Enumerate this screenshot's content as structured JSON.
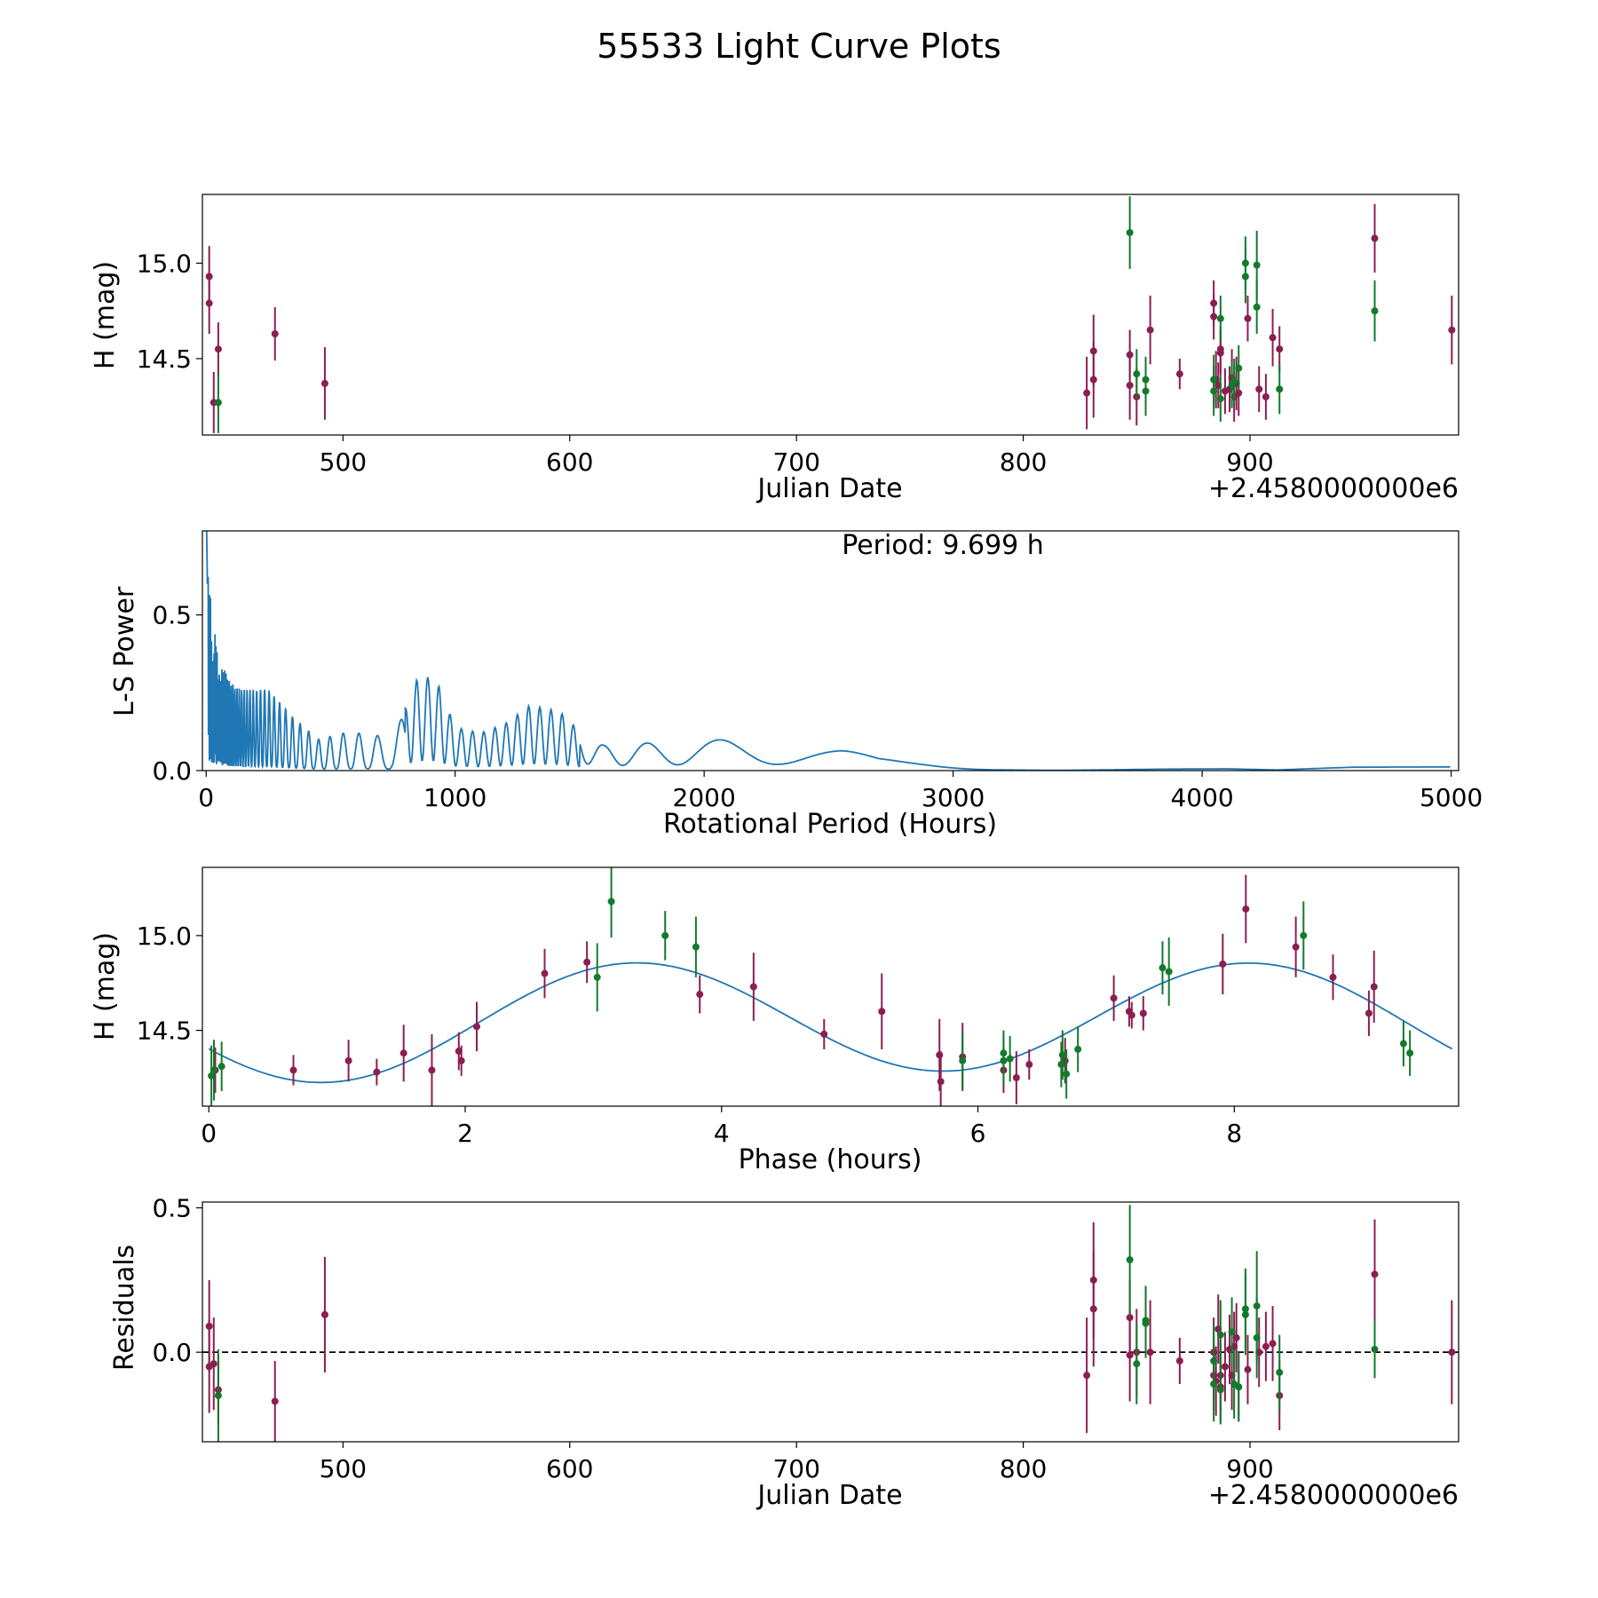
{
  "figure_title": "55533 Light Curve Plots",
  "colors": {
    "maroon": "#8b1e52",
    "green": "#137a2c",
    "curve": "#1f77b4",
    "zero_line": "#000000"
  },
  "chart_data": [
    {
      "type": "scatter",
      "id": "lightcurve",
      "xlabel": "Julian Date",
      "ylabel": "H (mag)",
      "offset_text": "+2.4580000000e6",
      "xlim": [
        438,
        992
      ],
      "ylim": [
        14.1,
        15.36
      ],
      "xticks": [
        500,
        600,
        700,
        800,
        900
      ],
      "yticks": [
        14.5,
        15.0
      ],
      "xtick_labels": [
        "500",
        "600",
        "700",
        "800",
        "900"
      ],
      "ytick_labels": [
        "14.5",
        "15.0"
      ],
      "series": [
        {
          "name": "maroon",
          "color": "#8b1e52",
          "points": [
            [
              441,
              14.93,
              0.16
            ],
            [
              441,
              14.79,
              0.16
            ],
            [
              443,
              14.27,
              0.16
            ],
            [
              445,
              14.55,
              0.14
            ],
            [
              470,
              14.63,
              0.14
            ],
            [
              492,
              14.37,
              0.19
            ],
            [
              828,
              14.32,
              0.19
            ],
            [
              831,
              14.39,
              0.2
            ],
            [
              831,
              14.54,
              0.19
            ],
            [
              847,
              14.52,
              0.13
            ],
            [
              847,
              14.36,
              0.18
            ],
            [
              850,
              14.3,
              0.15
            ],
            [
              856,
              14.65,
              0.18
            ],
            [
              869,
              14.42,
              0.08
            ],
            [
              884,
              14.79,
              0.12
            ],
            [
              884,
              14.72,
              0.12
            ],
            [
              885,
              14.39,
              0.15
            ],
            [
              886,
              14.36,
              0.12
            ],
            [
              887,
              14.53,
              0.12
            ],
            [
              887,
              14.55,
              0.12
            ],
            [
              889,
              14.33,
              0.12
            ],
            [
              891,
              14.34,
              0.12
            ],
            [
              892,
              14.4,
              0.15
            ],
            [
              893,
              14.3,
              0.13
            ],
            [
              894,
              14.37,
              0.14
            ],
            [
              895,
              14.32,
              0.12
            ],
            [
              899,
              14.71,
              0.12
            ],
            [
              904,
              14.34,
              0.12
            ],
            [
              907,
              14.3,
              0.12
            ],
            [
              910,
              14.61,
              0.15
            ],
            [
              913,
              14.55,
              0.12
            ],
            [
              955,
              15.13,
              0.18
            ],
            [
              989,
              14.65,
              0.18
            ]
          ]
        },
        {
          "name": "green",
          "color": "#137a2c",
          "points": [
            [
              445,
              14.27,
              0.16
            ],
            [
              847,
              15.16,
              0.19
            ],
            [
              850,
              14.42,
              0.13
            ],
            [
              854,
              14.33,
              0.13
            ],
            [
              854,
              14.39,
              0.12
            ],
            [
              884,
              14.39,
              0.13
            ],
            [
              884,
              14.33,
              0.13
            ],
            [
              887,
              14.71,
              0.12
            ],
            [
              887,
              14.29,
              0.12
            ],
            [
              892,
              14.36,
              0.12
            ],
            [
              893,
              14.38,
              0.12
            ],
            [
              895,
              14.45,
              0.12
            ],
            [
              898,
              15.0,
              0.14
            ],
            [
              898,
              14.93,
              0.14
            ],
            [
              903,
              14.99,
              0.18
            ],
            [
              903,
              14.77,
              0.14
            ],
            [
              913,
              14.34,
              0.13
            ],
            [
              955,
              14.75,
              0.16
            ]
          ]
        }
      ]
    },
    {
      "type": "line",
      "id": "periodogram",
      "xlabel": "Rotational Period (Hours)",
      "ylabel": "L-S Power",
      "annotation": "Period: 9.699 h",
      "xlim": [
        -15,
        5030
      ],
      "ylim": [
        0,
        0.77
      ],
      "xticks": [
        0,
        1000,
        2000,
        3000,
        4000,
        5000
      ],
      "yticks": [
        0,
        0.5
      ],
      "xtick_labels": [
        "0",
        "1000",
        "2000",
        "3000",
        "4000",
        "5000"
      ],
      "ytick_labels": [
        "0.0",
        "0.5"
      ],
      "envelope": [
        [
          0,
          0.77
        ],
        [
          20,
          0.55
        ],
        [
          50,
          0.36
        ],
        [
          100,
          0.28
        ],
        [
          150,
          0.26
        ],
        [
          250,
          0.26
        ],
        [
          350,
          0.17
        ],
        [
          450,
          0.1
        ],
        [
          550,
          0.12
        ],
        [
          650,
          0.12
        ],
        [
          750,
          0.1
        ],
        [
          850,
          0.3
        ],
        [
          920,
          0.3
        ],
        [
          1000,
          0.14
        ],
        [
          1100,
          0.12
        ],
        [
          1200,
          0.15
        ],
        [
          1300,
          0.21
        ],
        [
          1420,
          0.19
        ],
        [
          1520,
          0.11
        ],
        [
          1600,
          0.08
        ],
        [
          1800,
          0.09
        ],
        [
          2100,
          0.1
        ],
        [
          2300,
          0.1
        ],
        [
          2550,
          0.07
        ],
        [
          2700,
          0.04
        ],
        [
          2900,
          0.03
        ],
        [
          3100,
          0.015
        ],
        [
          3400,
          0.003
        ],
        [
          3800,
          0.006
        ],
        [
          4100,
          0.006
        ],
        [
          4300,
          0.002
        ],
        [
          4600,
          0.011
        ],
        [
          5000,
          0.014
        ]
      ]
    },
    {
      "type": "scatter",
      "id": "phased",
      "xlabel": "Phase (hours)",
      "ylabel": "H (mag)",
      "xlim": [
        -0.05,
        9.75
      ],
      "ylim": [
        14.1,
        15.36
      ],
      "xticks": [
        0,
        2,
        4,
        6,
        8
      ],
      "yticks": [
        14.5,
        15.0
      ],
      "xtick_labels": [
        "0",
        "2",
        "4",
        "6",
        "8"
      ],
      "ytick_labels": [
        "14.5",
        "15.0"
      ],
      "model": {
        "mean": 14.555,
        "amp2": 0.3,
        "phase2": 3.3,
        "amp1": 0.03,
        "period": 9.699
      },
      "series": [
        {
          "name": "maroon",
          "color": "#8b1e52",
          "points": [
            [
              0.05,
              14.29,
              0.12
            ],
            [
              0.66,
              14.29,
              0.08
            ],
            [
              1.09,
              14.34,
              0.11
            ],
            [
              1.31,
              14.28,
              0.07
            ],
            [
              1.52,
              14.38,
              0.15
            ],
            [
              1.74,
              14.29,
              0.19
            ],
            [
              1.95,
              14.39,
              0.1
            ],
            [
              1.97,
              14.34,
              0.08
            ],
            [
              2.09,
              14.52,
              0.13
            ],
            [
              2.62,
              14.8,
              0.13
            ],
            [
              2.95,
              14.86,
              0.11
            ],
            [
              3.83,
              14.69,
              0.1
            ],
            [
              4.25,
              14.73,
              0.18
            ],
            [
              4.8,
              14.48,
              0.08
            ],
            [
              5.25,
              14.6,
              0.2
            ],
            [
              5.7,
              14.37,
              0.19
            ],
            [
              5.71,
              14.23,
              0.16
            ],
            [
              5.88,
              14.36,
              0.18
            ],
            [
              6.2,
              14.29,
              0.12
            ],
            [
              6.3,
              14.25,
              0.14
            ],
            [
              6.4,
              14.32,
              0.08
            ],
            [
              6.68,
              14.34,
              0.12
            ],
            [
              7.06,
              14.67,
              0.12
            ],
            [
              7.18,
              14.6,
              0.08
            ],
            [
              7.2,
              14.58,
              0.07
            ],
            [
              7.29,
              14.59,
              0.09
            ],
            [
              7.91,
              14.85,
              0.16
            ],
            [
              8.09,
              15.14,
              0.18
            ],
            [
              8.48,
              14.94,
              0.16
            ],
            [
              8.77,
              14.78,
              0.12
            ],
            [
              9.05,
              14.59,
              0.12
            ],
            [
              9.09,
              14.73,
              0.19
            ]
          ]
        },
        {
          "name": "green",
          "color": "#137a2c",
          "points": [
            [
              0.02,
              14.26,
              0.16
            ],
            [
              0.04,
              14.29,
              0.16
            ],
            [
              0.1,
              14.31,
              0.13
            ],
            [
              3.03,
              14.78,
              0.18
            ],
            [
              3.14,
              15.18,
              0.19
            ],
            [
              3.56,
              15.0,
              0.13
            ],
            [
              3.8,
              14.94,
              0.16
            ],
            [
              5.88,
              14.34,
              0.15
            ],
            [
              6.2,
              14.34,
              0.13
            ],
            [
              6.2,
              14.38,
              0.12
            ],
            [
              6.25,
              14.35,
              0.12
            ],
            [
              6.65,
              14.32,
              0.12
            ],
            [
              6.66,
              14.37,
              0.13
            ],
            [
              6.69,
              14.27,
              0.13
            ],
            [
              6.78,
              14.4,
              0.12
            ],
            [
              7.44,
              14.83,
              0.14
            ],
            [
              7.49,
              14.81,
              0.18
            ],
            [
              8.54,
              15.0,
              0.18
            ],
            [
              9.32,
              14.43,
              0.12
            ],
            [
              9.37,
              14.38,
              0.12
            ]
          ]
        }
      ]
    },
    {
      "type": "scatter",
      "id": "residuals",
      "xlabel": "Julian Date",
      "ylabel": "Residuals",
      "offset_text": "+2.4580000000e6",
      "xlim": [
        438,
        992
      ],
      "ylim": [
        -0.31,
        0.52
      ],
      "xticks": [
        500,
        600,
        700,
        800,
        900
      ],
      "yticks": [
        0,
        0.5
      ],
      "xtick_labels": [
        "500",
        "600",
        "700",
        "800",
        "900"
      ],
      "ytick_labels": [
        "0.0",
        "0.5"
      ],
      "reference_line": 0,
      "series": [
        {
          "name": "maroon",
          "color": "#8b1e52",
          "points": [
            [
              441,
              0.09,
              0.16
            ],
            [
              441,
              -0.05,
              0.16
            ],
            [
              443,
              -0.04,
              0.16
            ],
            [
              445,
              -0.13,
              0.12
            ],
            [
              470,
              -0.17,
              0.14
            ],
            [
              492,
              0.13,
              0.2
            ],
            [
              828,
              -0.08,
              0.2
            ],
            [
              831,
              0.25,
              0.2
            ],
            [
              831,
              0.15,
              0.2
            ],
            [
              847,
              0.12,
              0.13
            ],
            [
              847,
              -0.01,
              0.16
            ],
            [
              850,
              0.0,
              0.15
            ],
            [
              856,
              0.0,
              0.18
            ],
            [
              869,
              -0.03,
              0.08
            ],
            [
              884,
              0.0,
              0.12
            ],
            [
              884,
              -0.08,
              0.12
            ],
            [
              885,
              -0.1,
              0.12
            ],
            [
              886,
              0.08,
              0.12
            ],
            [
              887,
              -0.08,
              0.12
            ],
            [
              887,
              -0.12,
              0.12
            ],
            [
              889,
              -0.05,
              0.12
            ],
            [
              891,
              0.01,
              0.12
            ],
            [
              892,
              -0.08,
              0.12
            ],
            [
              893,
              0.02,
              0.12
            ],
            [
              894,
              0.05,
              0.12
            ],
            [
              895,
              -0.12,
              0.12
            ],
            [
              899,
              -0.06,
              0.12
            ],
            [
              904,
              0.0,
              0.12
            ],
            [
              907,
              0.02,
              0.12
            ],
            [
              910,
              0.03,
              0.13
            ],
            [
              913,
              -0.15,
              0.12
            ],
            [
              955,
              0.27,
              0.19
            ],
            [
              989,
              0.0,
              0.18
            ]
          ]
        },
        {
          "name": "green",
          "color": "#137a2c",
          "points": [
            [
              445,
              -0.15,
              0.16
            ],
            [
              847,
              0.32,
              0.19
            ],
            [
              850,
              -0.04,
              0.14
            ],
            [
              854,
              0.1,
              0.12
            ],
            [
              854,
              0.11,
              0.12
            ],
            [
              884,
              -0.03,
              0.13
            ],
            [
              884,
              -0.11,
              0.13
            ],
            [
              887,
              0.06,
              0.12
            ],
            [
              887,
              -0.13,
              0.12
            ],
            [
              892,
              0.07,
              0.12
            ],
            [
              893,
              -0.11,
              0.12
            ],
            [
              895,
              -0.12,
              0.12
            ],
            [
              898,
              0.15,
              0.14
            ],
            [
              898,
              0.13,
              0.14
            ],
            [
              903,
              0.16,
              0.19
            ],
            [
              903,
              0.05,
              0.14
            ],
            [
              913,
              -0.07,
              0.13
            ],
            [
              955,
              0.01,
              0.1
            ]
          ]
        }
      ]
    }
  ]
}
